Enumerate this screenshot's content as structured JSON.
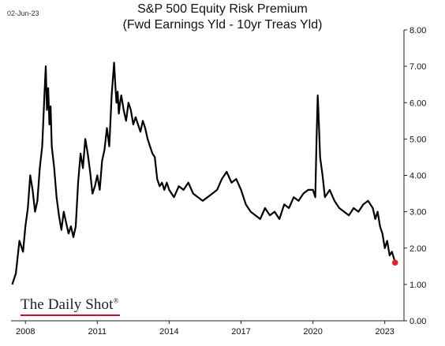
{
  "date_stamp": "02-Jun-23",
  "title_line1": "S&P 500 Equity Risk Premium",
  "title_line2": "(Fwd Earnings Yld - 10yr Treas Yld)",
  "logo": {
    "text": "The Daily Shot",
    "mark": "®"
  },
  "colors": {
    "line": "#000000",
    "last_point": "#e8202a",
    "axis": "#222222",
    "logo_underline": "#c8102e"
  },
  "chart_data": {
    "type": "line",
    "title": "S&P 500 Equity Risk Premium",
    "subtitle": "(Fwd Earnings Yld - 10yr Treas Yld)",
    "xlabel": "",
    "ylabel": "",
    "y_axis_position": "right",
    "ylim": [
      0,
      8
    ],
    "xlim": [
      2007.4,
      2023.8
    ],
    "yticks": [
      0,
      1,
      2,
      3,
      4,
      5,
      6,
      7,
      8
    ],
    "ytick_labels": [
      "0.00",
      "1.00",
      "2.00",
      "3.00",
      "4.00",
      "5.00",
      "6.00",
      "7.00",
      "8.00"
    ],
    "xticks": [
      2008,
      2011,
      2014,
      2017,
      2020,
      2023
    ],
    "xtick_labels": [
      "2008",
      "2011",
      "2014",
      "2017",
      "2020",
      "2023"
    ],
    "grid": false,
    "legend": "none",
    "series": [
      {
        "x": [
          2007.45,
          2007.6,
          2007.75,
          2007.9,
          2008.0,
          2008.1,
          2008.2,
          2008.3,
          2008.4,
          2008.5,
          2008.6,
          2008.7,
          2008.8,
          2008.85,
          2008.9,
          2008.95,
          2009.0,
          2009.05,
          2009.1,
          2009.2,
          2009.3,
          2009.4,
          2009.5,
          2009.6,
          2009.7,
          2009.8,
          2009.9,
          2010.0,
          2010.1,
          2010.2,
          2010.3,
          2010.4,
          2010.5,
          2010.6,
          2010.7,
          2010.8,
          2010.9,
          2011.0,
          2011.1,
          2011.2,
          2011.3,
          2011.4,
          2011.5,
          2011.6,
          2011.7,
          2011.75,
          2011.8,
          2011.85,
          2011.9,
          2011.95,
          2012.0,
          2012.1,
          2012.2,
          2012.3,
          2012.4,
          2012.5,
          2012.6,
          2012.7,
          2012.8,
          2012.9,
          2013.0,
          2013.1,
          2013.2,
          2013.3,
          2013.4,
          2013.5,
          2013.6,
          2013.7,
          2013.8,
          2013.9,
          2014.0,
          2014.2,
          2014.4,
          2014.6,
          2014.8,
          2015.0,
          2015.2,
          2015.4,
          2015.6,
          2015.8,
          2016.0,
          2016.2,
          2016.4,
          2016.6,
          2016.8,
          2017.0,
          2017.2,
          2017.4,
          2017.6,
          2017.8,
          2018.0,
          2018.2,
          2018.4,
          2018.6,
          2018.8,
          2019.0,
          2019.2,
          2019.4,
          2019.6,
          2019.8,
          2020.0,
          2020.1,
          2020.15,
          2020.2,
          2020.25,
          2020.3,
          2020.4,
          2020.5,
          2020.7,
          2020.9,
          2021.1,
          2021.3,
          2021.5,
          2021.7,
          2021.9,
          2022.1,
          2022.3,
          2022.5,
          2022.6,
          2022.7,
          2022.8,
          2022.9,
          2023.0,
          2023.1,
          2023.2,
          2023.3,
          2023.43
        ],
        "y": [
          1.0,
          1.3,
          2.2,
          1.9,
          2.6,
          3.1,
          4.0,
          3.6,
          3.0,
          3.3,
          4.2,
          4.8,
          6.3,
          7.0,
          5.8,
          6.4,
          5.4,
          5.9,
          4.8,
          4.2,
          3.4,
          2.9,
          2.5,
          3.0,
          2.7,
          2.4,
          2.6,
          2.3,
          2.6,
          3.8,
          4.6,
          4.2,
          5.0,
          4.6,
          4.1,
          3.5,
          3.7,
          4.0,
          3.6,
          4.4,
          4.7,
          5.3,
          4.8,
          6.2,
          7.1,
          6.5,
          6.0,
          6.3,
          5.7,
          6.0,
          6.2,
          5.8,
          5.5,
          6.0,
          5.8,
          5.4,
          5.6,
          5.4,
          5.2,
          5.5,
          5.3,
          5.0,
          4.8,
          4.6,
          4.5,
          3.9,
          3.7,
          3.8,
          3.6,
          3.8,
          3.6,
          3.4,
          3.7,
          3.6,
          3.8,
          3.5,
          3.4,
          3.3,
          3.4,
          3.5,
          3.6,
          3.9,
          4.1,
          3.8,
          3.9,
          3.6,
          3.2,
          3.0,
          2.9,
          2.8,
          3.1,
          2.9,
          3.0,
          2.8,
          3.2,
          3.1,
          3.4,
          3.3,
          3.5,
          3.6,
          3.6,
          3.4,
          5.0,
          6.2,
          5.4,
          4.5,
          4.0,
          3.4,
          3.6,
          3.3,
          3.1,
          3.0,
          2.9,
          3.1,
          3.0,
          3.2,
          3.3,
          3.1,
          2.8,
          3.0,
          2.6,
          2.4,
          2.0,
          2.2,
          1.8,
          1.9,
          1.6
        ]
      }
    ],
    "last_point": {
      "x": 2023.43,
      "y": 1.6
    }
  }
}
